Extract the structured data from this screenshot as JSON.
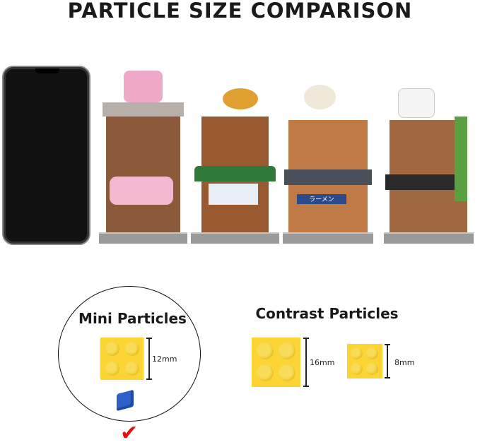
{
  "title": "PARTICLE SIZE COMPARISON",
  "shops": [
    {
      "name": "sakura-shop",
      "sign": ""
    },
    {
      "name": "bathhouse-shop",
      "sign": ""
    },
    {
      "name": "ramen-shop",
      "sign": "ラーメン"
    },
    {
      "name": "tea-shop",
      "sign": ""
    }
  ],
  "mini": {
    "heading": "Mini Particles",
    "size": "12mm",
    "selected": true
  },
  "contrast": {
    "heading": "Contrast Particles",
    "sizes": [
      "16mm",
      "8mm"
    ]
  },
  "colors": {
    "brick": "#fcd535",
    "small_brick": "#2f5fc8",
    "check": "#e01010"
  }
}
